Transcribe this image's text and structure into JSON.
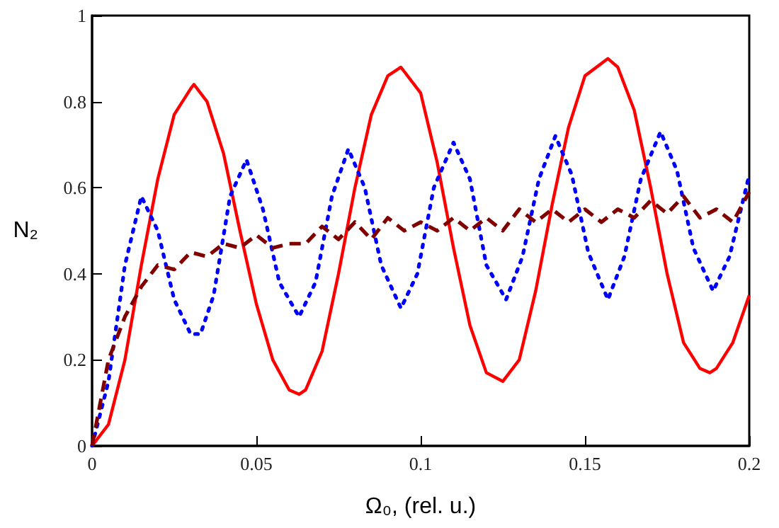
{
  "chart_data": {
    "type": "line",
    "xlabel": "Ω₀, (rel. u.)",
    "ylabel": "N₂",
    "xlim": [
      0,
      0.2
    ],
    "xticks": [
      0,
      0.05,
      0.1,
      0.15,
      0.2
    ],
    "ylim": [
      0,
      1
    ],
    "yticks": [
      0,
      0.2,
      0.4,
      0.6,
      0.8,
      1
    ],
    "grid": false,
    "marker": "none",
    "series": [
      {
        "color": "#ff0000",
        "line_style": "solid",
        "x": [
          0,
          0.005,
          0.01,
          0.015,
          0.02,
          0.025,
          0.03,
          0.031,
          0.035,
          0.04,
          0.045,
          0.05,
          0.055,
          0.06,
          0.063,
          0.065,
          0.07,
          0.075,
          0.08,
          0.085,
          0.09,
          0.094,
          0.1,
          0.105,
          0.11,
          0.115,
          0.12,
          0.125,
          0.13,
          0.135,
          0.14,
          0.145,
          0.15,
          0.157,
          0.16,
          0.165,
          0.17,
          0.175,
          0.18,
          0.185,
          0.188,
          0.19,
          0.195,
          0.2
        ],
        "values": [
          0,
          0.05,
          0.2,
          0.42,
          0.62,
          0.77,
          0.83,
          0.84,
          0.8,
          0.68,
          0.5,
          0.33,
          0.2,
          0.13,
          0.12,
          0.13,
          0.22,
          0.4,
          0.6,
          0.77,
          0.86,
          0.88,
          0.82,
          0.66,
          0.46,
          0.28,
          0.17,
          0.15,
          0.2,
          0.36,
          0.56,
          0.74,
          0.86,
          0.9,
          0.88,
          0.78,
          0.6,
          0.4,
          0.24,
          0.18,
          0.17,
          0.18,
          0.24,
          0.35
        ]
      },
      {
        "color": "#0000ff",
        "line_style": "dotted",
        "x": [
          0,
          0.005,
          0.01,
          0.015,
          0.02,
          0.025,
          0.03,
          0.033,
          0.037,
          0.042,
          0.047,
          0.052,
          0.057,
          0.063,
          0.068,
          0.073,
          0.078,
          0.083,
          0.088,
          0.094,
          0.099,
          0.104,
          0.11,
          0.115,
          0.12,
          0.126,
          0.131,
          0.136,
          0.141,
          0.146,
          0.151,
          0.157,
          0.162,
          0.167,
          0.173,
          0.178,
          0.183,
          0.189,
          0.194,
          0.2
        ],
        "values": [
          0,
          0.15,
          0.42,
          0.58,
          0.5,
          0.34,
          0.26,
          0.26,
          0.35,
          0.58,
          0.665,
          0.55,
          0.38,
          0.3,
          0.38,
          0.58,
          0.69,
          0.6,
          0.42,
          0.32,
          0.4,
          0.6,
          0.705,
          0.62,
          0.42,
          0.34,
          0.44,
          0.62,
          0.72,
          0.63,
          0.45,
          0.34,
          0.44,
          0.62,
          0.73,
          0.64,
          0.46,
          0.36,
          0.44,
          0.63
        ]
      },
      {
        "color": "#800000",
        "line_style": "dashed",
        "x": [
          0,
          0.005,
          0.01,
          0.015,
          0.02,
          0.025,
          0.03,
          0.035,
          0.04,
          0.045,
          0.05,
          0.055,
          0.06,
          0.065,
          0.07,
          0.075,
          0.08,
          0.085,
          0.09,
          0.095,
          0.1,
          0.105,
          0.11,
          0.115,
          0.12,
          0.125,
          0.13,
          0.135,
          0.14,
          0.145,
          0.15,
          0.155,
          0.16,
          0.165,
          0.17,
          0.175,
          0.18,
          0.185,
          0.19,
          0.195,
          0.2
        ],
        "values": [
          0,
          0.2,
          0.3,
          0.37,
          0.42,
          0.41,
          0.45,
          0.44,
          0.47,
          0.46,
          0.49,
          0.46,
          0.47,
          0.47,
          0.51,
          0.48,
          0.52,
          0.48,
          0.53,
          0.5,
          0.52,
          0.5,
          0.53,
          0.5,
          0.53,
          0.5,
          0.55,
          0.52,
          0.55,
          0.52,
          0.55,
          0.52,
          0.55,
          0.53,
          0.57,
          0.54,
          0.58,
          0.53,
          0.55,
          0.52,
          0.59
        ]
      }
    ]
  }
}
